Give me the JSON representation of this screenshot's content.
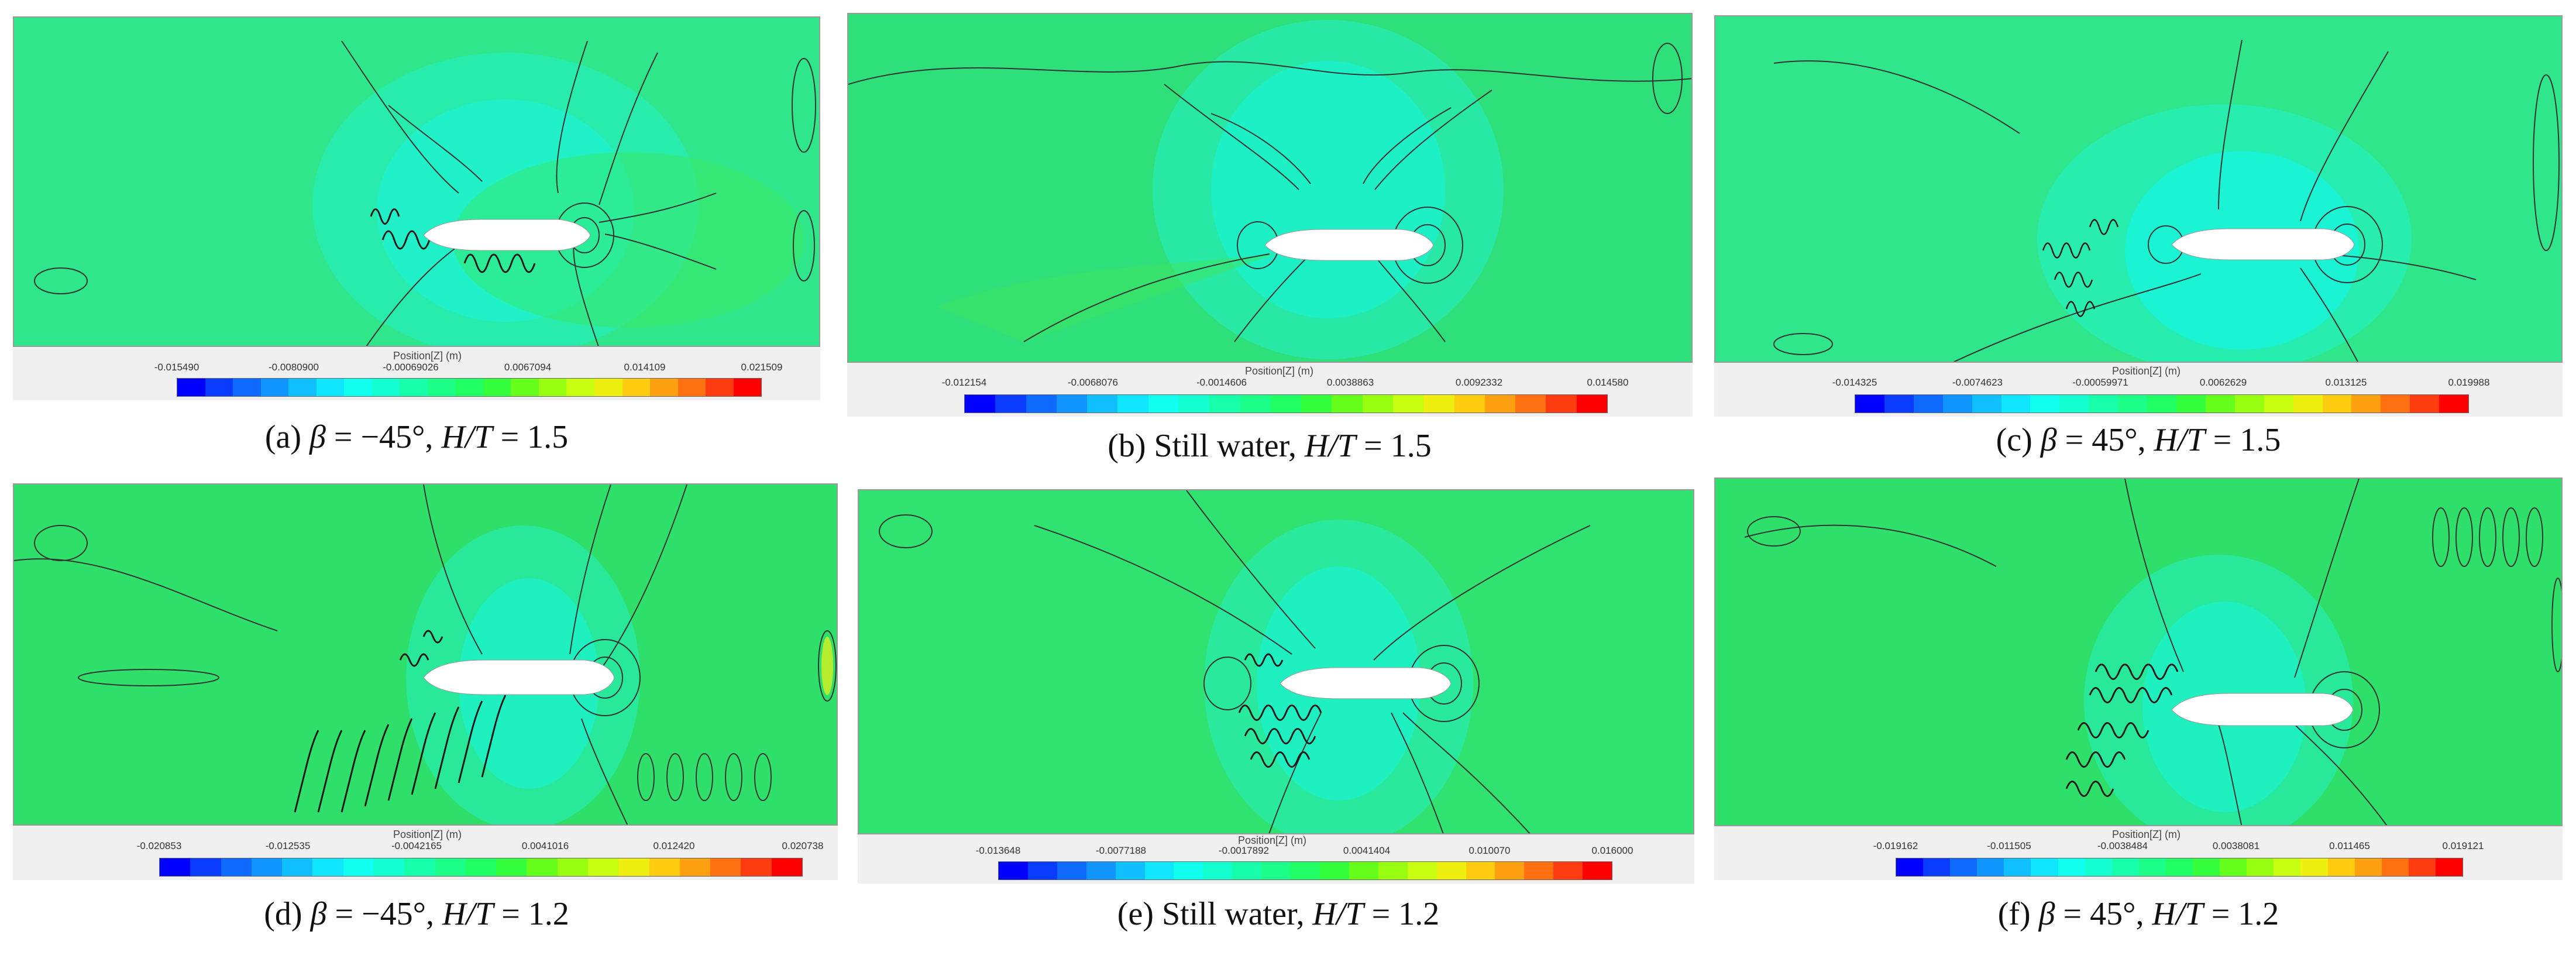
{
  "colorbar_colors": [
    "#0000ff",
    "#0a3cff",
    "#0f6aff",
    "#1095ff",
    "#10bfff",
    "#10e6ff",
    "#10ffee",
    "#14ffd0",
    "#18ffac",
    "#1cff88",
    "#20ff64",
    "#34ff3c",
    "#66ff1c",
    "#98ff10",
    "#c8ff10",
    "#f0f010",
    "#ffcc10",
    "#ffa010",
    "#ff7010",
    "#ff3c10",
    "#ff0000"
  ],
  "panels": [
    {
      "id": "a",
      "legend_title": "Position[Z] (m)",
      "ticks": [
        "-0.015490",
        "-0.0080900",
        "-0.00069026",
        "0.0067094",
        "0.014109",
        "0.021509"
      ],
      "caption_pre": "(a) ",
      "caption_sym": "β",
      "caption_mid": " = −45°, ",
      "caption_var": "H/T",
      "caption_post": " = 1.5"
    },
    {
      "id": "b",
      "legend_title": "Position[Z] (m)",
      "ticks": [
        "-0.012154",
        "-0.0068076",
        "-0.0014606",
        "0.0038863",
        "0.0092332",
        "0.014580"
      ],
      "caption_pre": "(b) Still water, ",
      "caption_sym": "",
      "caption_mid": "",
      "caption_var": "H/T",
      "caption_post": " = 1.5"
    },
    {
      "id": "c",
      "legend_title": "Position[Z] (m)",
      "ticks": [
        "-0.014325",
        "-0.0074623",
        "-0.00059971",
        "0.0062629",
        "0.013125",
        "0.019988"
      ],
      "caption_pre": "(c) ",
      "caption_sym": "β",
      "caption_mid": " = 45°, ",
      "caption_var": "H/T",
      "caption_post": " = 1.5"
    },
    {
      "id": "d",
      "legend_title": "Position[Z] (m)",
      "ticks": [
        "-0.020853",
        "-0.012535",
        "-0.0042165",
        "0.0041016",
        "0.012420",
        "0.020738"
      ],
      "caption_pre": "(d) ",
      "caption_sym": "β",
      "caption_mid": " = −45°, ",
      "caption_var": "H/T",
      "caption_post": " = 1.2"
    },
    {
      "id": "e",
      "legend_title": "Position[Z] (m)",
      "ticks": [
        "-0.013648",
        "-0.0077188",
        "-0.0017892",
        "0.0041404",
        "0.010070",
        "0.016000"
      ],
      "caption_pre": "(e) Still water, ",
      "caption_sym": "",
      "caption_mid": "",
      "caption_var": "H/T",
      "caption_post": " = 1.2"
    },
    {
      "id": "f",
      "legend_title": "Position[Z] (m)",
      "ticks": [
        "-0.019162",
        "-0.011505",
        "-0.0038484",
        "0.0038081",
        "0.011465",
        "0.019121"
      ],
      "caption_pre": "(f) ",
      "caption_sym": "β",
      "caption_mid": " = 45°, ",
      "caption_var": "H/T",
      "caption_post": " = 1.2"
    }
  ]
}
